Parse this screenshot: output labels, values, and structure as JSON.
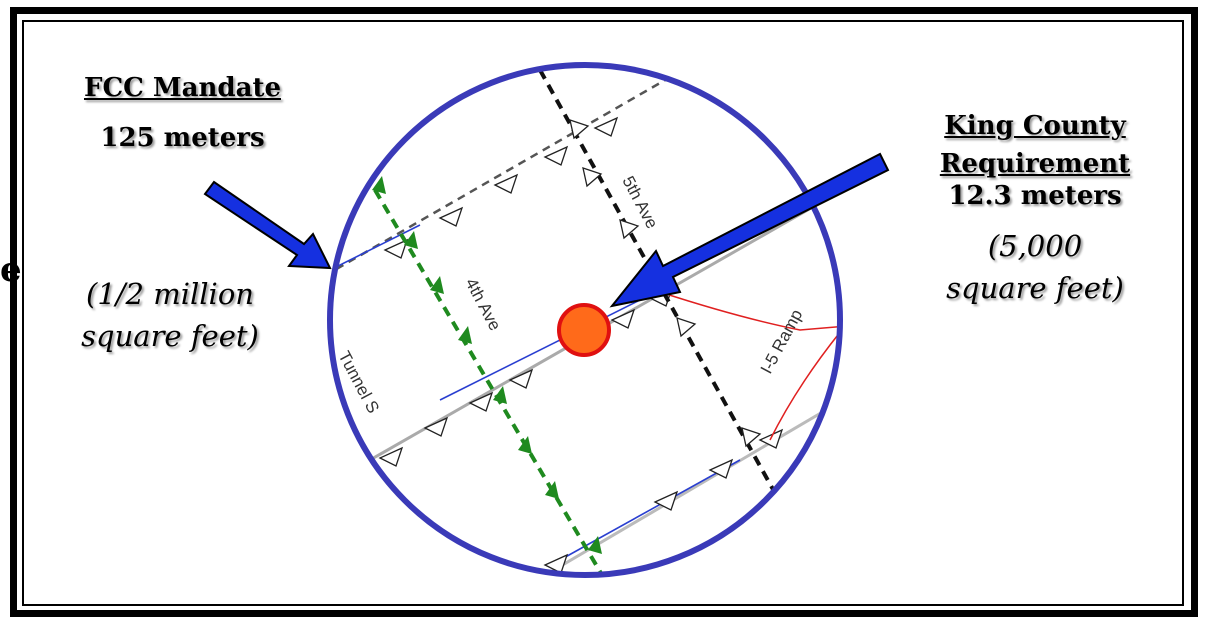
{
  "fcc": {
    "title": "FCC Mandate",
    "distance": "125 meters",
    "area_line1": "(1/2 million",
    "area_line2": "square feet)"
  },
  "king_county": {
    "title_line1": "King County",
    "title_line2": "Requirement",
    "distance": "12.3 meters",
    "area_line1": "(5,000",
    "area_line2": "square feet)"
  },
  "map": {
    "roads": [
      "5th Ave",
      "4th Ave",
      "Tunnel S",
      "I-5 Ramp"
    ],
    "circle_color": "#3a3ab8",
    "arrow_color": "#1530e0",
    "point_color": "#ff6a1a"
  },
  "edge_fragment": "e"
}
